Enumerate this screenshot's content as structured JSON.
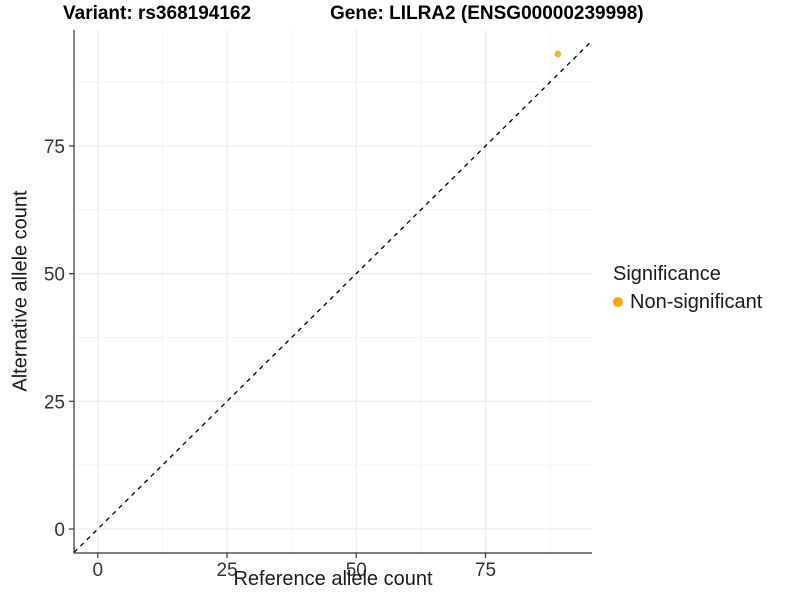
{
  "chart_data": {
    "type": "scatter",
    "titles": {
      "left": "Variant: rs368194162",
      "right": "Gene: LILRA2 (ENSG00000239998)"
    },
    "xlabel": "Reference allele count",
    "ylabel": "Alternative allele count",
    "x_ticks": [
      0,
      25,
      50,
      75
    ],
    "y_ticks": [
      0,
      25,
      50,
      75
    ],
    "x_minor": [
      12.5,
      37.5,
      62.5,
      87.5
    ],
    "y_minor": [
      12.5,
      37.5,
      62.5,
      87.5
    ],
    "xlim": [
      -4.6,
      95.6
    ],
    "ylim": [
      -4.7,
      97.7
    ],
    "grid": true,
    "points": [
      {
        "x": 89,
        "y": 93,
        "group": "Non-significant"
      }
    ],
    "identity_line": {
      "slope": 1,
      "intercept": 0,
      "style": "dashed",
      "color": "#000000"
    },
    "legend": {
      "position": "right",
      "title": "Significance",
      "entries": [
        {
          "label": "Non-significant",
          "color": "#FFA500"
        }
      ]
    },
    "colors": {
      "axis_line": "#333333",
      "tick_text": "#333333",
      "grid_major": "#E8E8E8",
      "grid_minor": "#F4F4F4"
    }
  }
}
